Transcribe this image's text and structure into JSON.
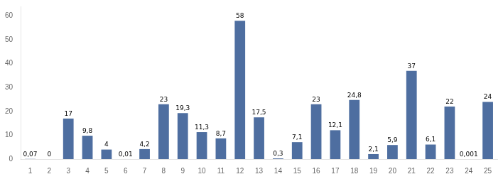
{
  "chart_data": {
    "type": "bar",
    "categories": [
      1,
      2,
      3,
      4,
      5,
      6,
      7,
      8,
      9,
      10,
      11,
      12,
      13,
      14,
      15,
      16,
      17,
      18,
      19,
      20,
      21,
      22,
      23,
      24,
      25
    ],
    "values": [
      0.07,
      0,
      17,
      9.8,
      4,
      0.01,
      4.2,
      23,
      19.3,
      11.3,
      8.7,
      58,
      17.5,
      0.3,
      7.1,
      23,
      12.1,
      24.8,
      2.1,
      5.9,
      37,
      6.1,
      22,
      0.001,
      24
    ],
    "value_labels": [
      "0,07",
      "0",
      "17",
      "9,8",
      "4",
      "0,01",
      "4,2",
      "23",
      "19,3",
      "11,3",
      "8,7",
      "58",
      "17,5",
      "0,3",
      "7,1",
      "23",
      "12,1",
      "24,8",
      "2,1",
      "5,9",
      "37",
      "6,1",
      "22",
      "0,001",
      "24"
    ],
    "data_labels": true,
    "color": "#4e6ea0",
    "ylim": [
      0,
      64
    ],
    "yticks": [
      0,
      10,
      20,
      30,
      40,
      50,
      60
    ],
    "grid": false
  }
}
